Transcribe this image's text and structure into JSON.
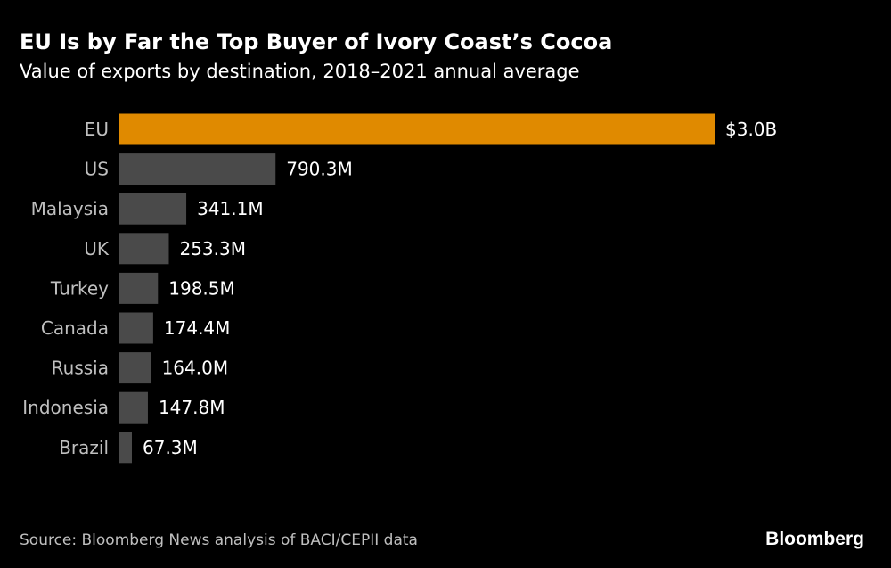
{
  "chart_data": {
    "type": "bar",
    "orientation": "horizontal",
    "title": "EU Is by Far the Top Buyer of Ivory Coast’s Cocoa",
    "subtitle": "Value of exports by destination, 2018–2021 annual average",
    "categories": [
      "EU",
      "US",
      "Malaysia",
      "UK",
      "Turkey",
      "Canada",
      "Russia",
      "Indonesia",
      "Brazil"
    ],
    "values": [
      3000,
      790.3,
      341.1,
      253.3,
      198.5,
      174.4,
      164.0,
      147.8,
      67.3
    ],
    "value_unit": "USD millions",
    "value_labels": [
      "$3.0B",
      "790.3M",
      "341.1M",
      "253.3M",
      "198.5M",
      "174.4M",
      "164.0M",
      "147.8M",
      "67.3M"
    ],
    "highlight_index": 0,
    "highlight_color": "#e08a00",
    "bar_color": "#4a4a4a",
    "xlim": [
      0,
      3000
    ],
    "grid": false,
    "legend": "none"
  },
  "footer": {
    "source": "Source: Bloomberg News analysis of BACI/CEPII data",
    "logo": "Bloomberg"
  },
  "colors": {
    "background": "#000000",
    "text": "#ffffff",
    "muted_text": "#bfbfbf"
  }
}
